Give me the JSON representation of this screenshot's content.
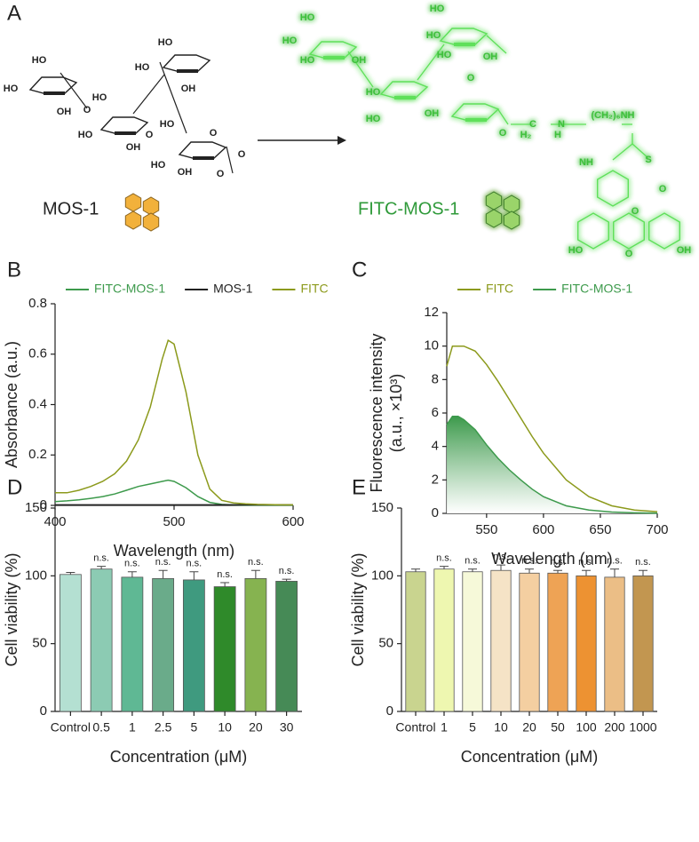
{
  "panel_a": {
    "label": "A",
    "left_name": "MOS-1",
    "right_name": "FITC-MOS-1",
    "left_structure_labels": [
      "HO",
      "HO",
      "OH",
      "O",
      "HO",
      "HO",
      "OH",
      "HO",
      "HO",
      "OH",
      "HO",
      "HO",
      "O",
      "O",
      "OH",
      "O",
      "O"
    ],
    "right_structure_labels": [
      "HO",
      "HO",
      "HO",
      "OH",
      "HO",
      "HO",
      "OH",
      "HO",
      "HO",
      "HO",
      "OH",
      "O",
      "O",
      "C",
      "N",
      "H",
      "H₂",
      "(CH₂)₆NH",
      "NH",
      "S",
      "O",
      "O",
      "HO",
      "OH",
      "O"
    ]
  },
  "chart_data": [
    {
      "type": "line",
      "panel_label": "B",
      "xlabel": "Wavelength (nm)",
      "ylabel": "Absorbance (a.u.)",
      "x": [
        400,
        410,
        420,
        430,
        440,
        450,
        460,
        470,
        480,
        490,
        495,
        500,
        510,
        520,
        530,
        540,
        550,
        560,
        570,
        580,
        590,
        600
      ],
      "series": [
        {
          "name": "FITC-MOS-1",
          "color": "#3d9a4c",
          "values": [
            0.015,
            0.018,
            0.022,
            0.028,
            0.035,
            0.045,
            0.06,
            0.075,
            0.085,
            0.095,
            0.1,
            0.095,
            0.07,
            0.035,
            0.012,
            0.004,
            0.002,
            0.001,
            0.001,
            0.001,
            0.001,
            0.001
          ]
        },
        {
          "name": "MOS-1",
          "color": "#222222",
          "values": [
            0.002,
            0.002,
            0.002,
            0.002,
            0.002,
            0.002,
            0.002,
            0.002,
            0.002,
            0.002,
            0.002,
            0.002,
            0.002,
            0.002,
            0.002,
            0.002,
            0.002,
            0.002,
            0.002,
            0.002,
            0.002,
            0.002
          ]
        },
        {
          "name": "FITC",
          "color": "#8c9a1c",
          "values": [
            0.05,
            0.05,
            0.06,
            0.075,
            0.095,
            0.125,
            0.175,
            0.26,
            0.39,
            0.58,
            0.655,
            0.64,
            0.45,
            0.2,
            0.065,
            0.02,
            0.01,
            0.006,
            0.004,
            0.003,
            0.002,
            0.002
          ]
        }
      ],
      "xlim": [
        400,
        600
      ],
      "xticks": [
        400,
        500,
        600
      ],
      "ylim": [
        0,
        0.8
      ],
      "yticks": [
        0,
        0.2,
        0.4,
        0.6,
        0.8
      ]
    },
    {
      "type": "line",
      "panel_label": "C",
      "xlabel": "Wavelength (nm)",
      "ylabel": [
        "Fluorescence intensity",
        "(a.u., ×10³)"
      ],
      "x": [
        515,
        520,
        525,
        530,
        540,
        550,
        560,
        570,
        580,
        590,
        600,
        620,
        640,
        660,
        680,
        700
      ],
      "series": [
        {
          "name": "FITC",
          "color": "#8c9a1c",
          "values": [
            8.8,
            10,
            10,
            10,
            9.7,
            8.9,
            7.9,
            6.8,
            5.7,
            4.6,
            3.6,
            2.0,
            1.0,
            0.45,
            0.2,
            0.1
          ]
        },
        {
          "name": "FITC-MOS-1",
          "color": "#3d9a4c",
          "fill_area": true,
          "values": [
            5.3,
            5.8,
            5.8,
            5.6,
            5.0,
            4.1,
            3.3,
            2.6,
            2.0,
            1.45,
            1.0,
            0.45,
            0.2,
            0.08,
            0.03,
            0.01
          ]
        }
      ],
      "xlim": [
        515,
        700
      ],
      "xticks": [
        550,
        600,
        650,
        700
      ],
      "ylim": [
        0,
        12
      ],
      "yticks": [
        0,
        2,
        4,
        6,
        8,
        10,
        12
      ]
    },
    {
      "type": "bar",
      "panel_label": "D",
      "xlabel": "Concentration (μM)",
      "ylabel": "Cell viability (%)",
      "categories": [
        "Control",
        "0.5",
        "1",
        "2.5",
        "5",
        "10",
        "20",
        "30"
      ],
      "values": [
        101,
        105,
        99,
        98,
        97,
        92,
        98,
        96
      ],
      "errors": [
        1.5,
        2,
        4,
        6,
        6,
        3,
        6,
        1.5
      ],
      "significance": [
        null,
        "n.s.",
        "n.s.",
        "n.s.",
        "n.s.",
        "n.s.",
        "n.s.",
        "n.s."
      ],
      "colors": [
        "#b4e0d2",
        "#8ccbb3",
        "#5fb894",
        "#6aab8a",
        "#3f9a7f",
        "#2f8a2a",
        "#86b350",
        "#468a56"
      ],
      "ylim": [
        0,
        150
      ],
      "yticks": [
        0,
        50,
        100,
        150
      ]
    },
    {
      "type": "bar",
      "panel_label": "E",
      "xlabel": "Concentration (μM)",
      "ylabel": "Cell viability (%)",
      "categories": [
        "Control",
        "1",
        "5",
        "10",
        "20",
        "50",
        "100",
        "200",
        "1000"
      ],
      "values": [
        103,
        105,
        103,
        104,
        102,
        102,
        100,
        99,
        100
      ],
      "errors": [
        2,
        2,
        2,
        4,
        3,
        2,
        4,
        6,
        4
      ],
      "significance": [
        null,
        "n.s.",
        "n.s.",
        "n.s.",
        "n.s.",
        "n.s.",
        "n.s.",
        "n.s.",
        "n.s."
      ],
      "colors": [
        "#c9d48f",
        "#eef7b0",
        "#f6f9d9",
        "#f5e3c6",
        "#f4cfa1",
        "#eea355",
        "#ed9232",
        "#ebbe86",
        "#c29650"
      ],
      "ylim": [
        0,
        150
      ],
      "yticks": [
        0,
        50,
        100,
        150
      ]
    }
  ]
}
